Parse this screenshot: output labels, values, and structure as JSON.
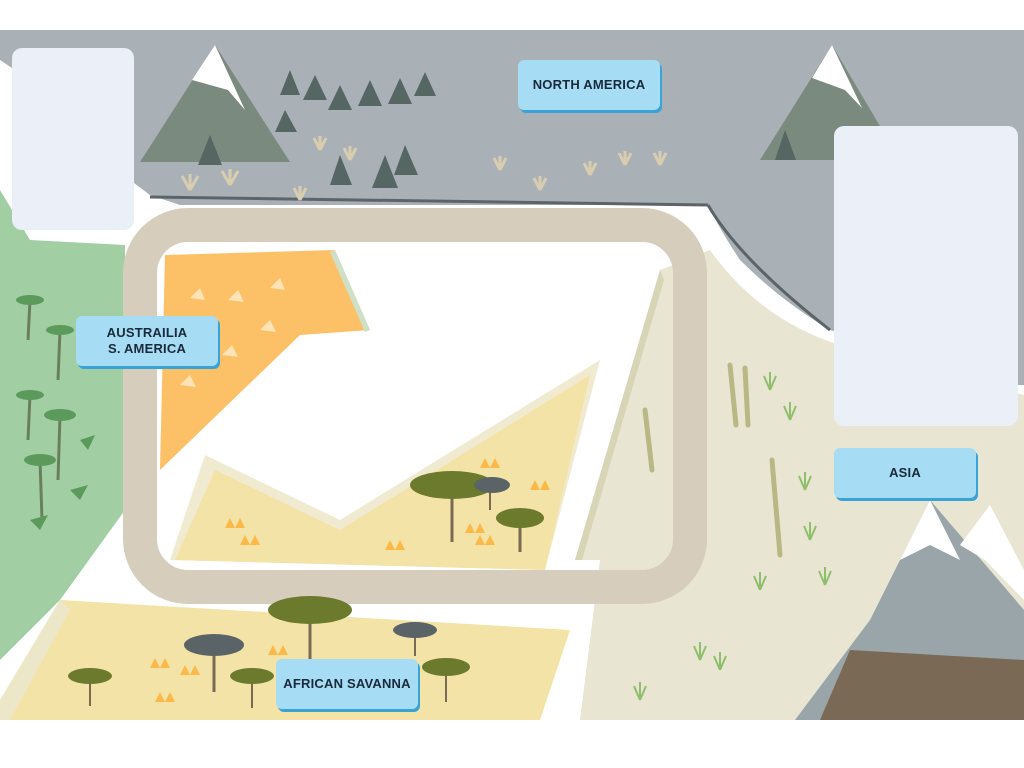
{
  "map": {
    "regions": {
      "north_america": "NORTH AMERICA",
      "australia_south_america": "AUSTRAILIA\nS. AMERICA",
      "asia": "ASIA",
      "african_savanna": "AFRICAN SAVANNA"
    },
    "colors": {
      "north_america_ground": "#aab1b6",
      "rainforest_green": "#a1cfa3",
      "savanna_yellow": "#f3e3a6",
      "desert_orange": "#fcc066",
      "bamboo_beige": "#e8e6d2",
      "track_tan": "#d7cdbd",
      "label_fill": "#a6dcf4",
      "label_shadow": "#3aa3d6",
      "panel_fill": "#eaeff8"
    },
    "icons": [
      "mountain-icon",
      "pine-tree-icon",
      "acacia-tree-icon",
      "palm-tree-icon",
      "bamboo-icon",
      "grass-tuft-icon"
    ]
  }
}
